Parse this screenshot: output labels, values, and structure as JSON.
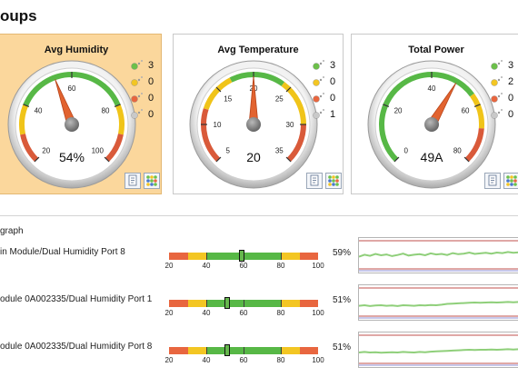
{
  "page": {
    "title": "oups"
  },
  "gauges": [
    {
      "title": "Avg Humidity",
      "reading": "54%",
      "value": 54,
      "min": 20,
      "max": 100,
      "ticks": [
        "20",
        "40",
        "60",
        "80",
        "100"
      ],
      "selected": true,
      "zones": [
        {
          "from": 20,
          "to": 30,
          "color": "#d95a3a"
        },
        {
          "from": 30,
          "to": 40,
          "color": "#f0c419"
        },
        {
          "from": 40,
          "to": 80,
          "color": "#57b846"
        },
        {
          "from": 80,
          "to": 90,
          "color": "#f0c419"
        },
        {
          "from": 90,
          "to": 100,
          "color": "#d95a3a"
        }
      ],
      "legend": [
        "3",
        "0",
        "0",
        "0"
      ]
    },
    {
      "title": "Avg Temperature",
      "reading": "20",
      "value": 20,
      "min": 5,
      "max": 35,
      "ticks": [
        "5",
        "10",
        "15",
        "20",
        "25",
        "30",
        "35"
      ],
      "selected": false,
      "zones": [
        {
          "from": 5,
          "to": 12,
          "color": "#d95a3a"
        },
        {
          "from": 12,
          "to": 17,
          "color": "#f0c419"
        },
        {
          "from": 17,
          "to": 24,
          "color": "#57b846"
        },
        {
          "from": 24,
          "to": 30,
          "color": "#f0c419"
        },
        {
          "from": 30,
          "to": 35,
          "color": "#d95a3a"
        }
      ],
      "legend": [
        "3",
        "0",
        "0",
        "1"
      ]
    },
    {
      "title": "Total Power",
      "reading": "49A",
      "value": 49,
      "min": 0,
      "max": 80,
      "ticks": [
        "0",
        "20",
        "40",
        "60",
        "80"
      ],
      "selected": false,
      "zones": [
        {
          "from": 0,
          "to": 56,
          "color": "#57b846"
        },
        {
          "from": 56,
          "to": 68,
          "color": "#f0c419"
        },
        {
          "from": 68,
          "to": 80,
          "color": "#d95a3a"
        }
      ],
      "legend": [
        "3",
        "2",
        "0",
        "0"
      ]
    }
  ],
  "legend_colors": [
    "#6cc04a",
    "#f3c623",
    "#e8663f",
    "#c9c9c9"
  ],
  "sensors": {
    "label": "graph",
    "ticks": [
      "20",
      "40",
      "60",
      "80",
      "100"
    ],
    "items": [
      {
        "name": "in Module/Dual Humidity Port 8",
        "value": 59,
        "pct": "59%"
      },
      {
        "name": "odule 0A002335/Dual Humidity Port 1",
        "value": 51,
        "pct": "51%"
      },
      {
        "name": "odule 0A002335/Dual Humidity Port 8",
        "value": 51,
        "pct": "51%"
      }
    ]
  }
}
